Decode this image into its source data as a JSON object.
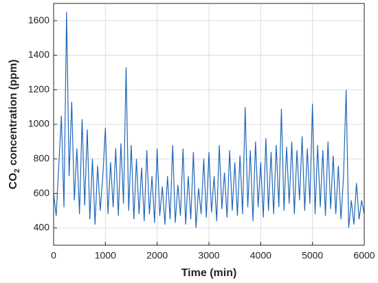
{
  "chart_data": {
    "type": "line",
    "xlabel": "Time (min)",
    "ylabel": [
      "CO",
      "2",
      " concentration (ppm)"
    ],
    "xlim": [
      0,
      6000
    ],
    "xticks": [
      0,
      1000,
      2000,
      3000,
      4000,
      5000,
      6000
    ],
    "ylim": [
      300,
      1700
    ],
    "yticks": [
      400,
      600,
      800,
      1000,
      1200,
      1400,
      1600
    ],
    "grid": true,
    "series": [
      {
        "color": "#1f66b8",
        "x": [
          0,
          50,
          100,
          150,
          200,
          250,
          300,
          350,
          400,
          450,
          500,
          550,
          600,
          650,
          700,
          750,
          800,
          850,
          900,
          950,
          1000,
          1050,
          1100,
          1150,
          1200,
          1250,
          1300,
          1350,
          1400,
          1450,
          1500,
          1550,
          1600,
          1650,
          1700,
          1750,
          1800,
          1850,
          1900,
          1950,
          2000,
          2050,
          2100,
          2150,
          2200,
          2250,
          2300,
          2350,
          2400,
          2450,
          2500,
          2550,
          2600,
          2650,
          2700,
          2750,
          2800,
          2850,
          2900,
          2950,
          3000,
          3050,
          3100,
          3150,
          3200,
          3250,
          3300,
          3350,
          3400,
          3450,
          3500,
          3550,
          3600,
          3650,
          3700,
          3750,
          3800,
          3850,
          3900,
          3950,
          4000,
          4050,
          4100,
          4150,
          4200,
          4250,
          4300,
          4350,
          4400,
          4450,
          4500,
          4550,
          4600,
          4650,
          4700,
          4750,
          4800,
          4850,
          4900,
          4950,
          5000,
          5050,
          5100,
          5150,
          5200,
          5250,
          5300,
          5350,
          5400,
          5450,
          5500,
          5550,
          5600,
          5650,
          5700,
          5750,
          5800,
          5850,
          5900,
          5950,
          6000
        ],
        "values": [
          600,
          470,
          760,
          1050,
          520,
          1650,
          700,
          1130,
          560,
          860,
          480,
          1030,
          530,
          970,
          450,
          800,
          420,
          760,
          500,
          700,
          980,
          480,
          780,
          520,
          860,
          470,
          890,
          540,
          1330,
          500,
          880,
          450,
          800,
          480,
          750,
          440,
          850,
          480,
          700,
          430,
          860,
          470,
          640,
          420,
          700,
          450,
          880,
          430,
          650,
          470,
          860,
          420,
          700,
          450,
          840,
          400,
          630,
          480,
          800,
          460,
          840,
          490,
          700,
          440,
          880,
          510,
          720,
          460,
          850,
          500,
          780,
          470,
          820,
          480,
          1100,
          520,
          850,
          440,
          900,
          520,
          780,
          460,
          920,
          500,
          840,
          480,
          880,
          520,
          1090,
          500,
          870,
          540,
          900,
          480,
          850,
          560,
          930,
          500,
          860,
          540,
          1120,
          480,
          880,
          520,
          850,
          470,
          900,
          510,
          820,
          480,
          760,
          450,
          700,
          1200,
          400,
          560,
          420,
          660,
          450,
          560,
          480
        ]
      }
    ]
  }
}
